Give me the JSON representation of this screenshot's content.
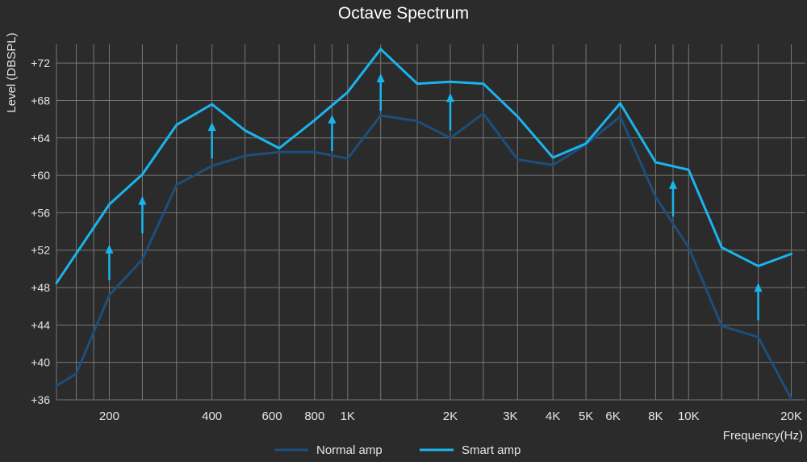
{
  "chart_data": {
    "type": "line",
    "title": "Octave Spectrum",
    "xlabel": "Frequency(Hz)",
    "ylabel": "Level (DBSPL)",
    "x_scale": "log",
    "xlim": [
      140,
      22000
    ],
    "ylim": [
      36,
      74
    ],
    "y_ticks": [
      {
        "value": 36,
        "label": "+36"
      },
      {
        "value": 40,
        "label": "+40"
      },
      {
        "value": 44,
        "label": "+44"
      },
      {
        "value": 48,
        "label": "+48"
      },
      {
        "value": 52,
        "label": "+52"
      },
      {
        "value": 56,
        "label": "+56"
      },
      {
        "value": 60,
        "label": "+60"
      },
      {
        "value": 64,
        "label": "+64"
      },
      {
        "value": 68,
        "label": "+68"
      },
      {
        "value": 72,
        "label": "+72"
      }
    ],
    "x_ticks": [
      {
        "value": 200,
        "label": "200"
      },
      {
        "value": 400,
        "label": "400"
      },
      {
        "value": 600,
        "label": "600"
      },
      {
        "value": 800,
        "label": "800"
      },
      {
        "value": 1000,
        "label": "1K"
      },
      {
        "value": 2000,
        "label": "2K"
      },
      {
        "value": 3000,
        "label": "3K"
      },
      {
        "value": 4000,
        "label": "4K"
      },
      {
        "value": 5000,
        "label": "5K"
      },
      {
        "value": 6000,
        "label": "6K"
      },
      {
        "value": 8000,
        "label": "8K"
      },
      {
        "value": 10000,
        "label": "10K"
      },
      {
        "value": 20000,
        "label": "20K"
      }
    ],
    "grid_lines_x": [
      140,
      160,
      180,
      200,
      250,
      315,
      400,
      500,
      630,
      800,
      900,
      1000,
      1250,
      1600,
      2000,
      2500,
      3150,
      4000,
      5000,
      6300,
      8000,
      9000,
      10000,
      12500,
      16000,
      20000
    ],
    "grid": true,
    "legend_position": "bottom",
    "colors": {
      "background": "#2b2b2b",
      "grid": "#777777",
      "text": "#e6e6e6",
      "normal_amp": "#1c4f7c",
      "smart_amp": "#1ab4ee",
      "arrow": "#1ab4ee"
    },
    "series": [
      {
        "name": "Normal amp",
        "x": [
          140,
          160,
          200,
          250,
          315,
          400,
          500,
          630,
          800,
          1000,
          1250,
          1600,
          2000,
          2500,
          3150,
          4000,
          5000,
          6300,
          8000,
          10000,
          12500,
          16000,
          20000
        ],
        "values": [
          37.5,
          38.8,
          47.2,
          51.0,
          59.0,
          61.0,
          62.1,
          62.5,
          62.5,
          61.8,
          66.4,
          65.8,
          64.0,
          66.6,
          61.7,
          61.1,
          63.3,
          66.3,
          57.7,
          52.3,
          43.9,
          42.7,
          36.1
        ]
      },
      {
        "name": "Smart amp",
        "x": [
          140,
          200,
          250,
          315,
          400,
          500,
          630,
          800,
          1000,
          1250,
          1600,
          2000,
          2500,
          3150,
          4000,
          5000,
          6300,
          8000,
          10000,
          12500,
          16000,
          20000
        ],
        "values": [
          48.5,
          56.9,
          60.1,
          65.4,
          67.6,
          64.8,
          62.9,
          65.9,
          68.9,
          73.5,
          69.8,
          70.0,
          69.8,
          66.3,
          61.9,
          63.4,
          67.7,
          61.4,
          60.6,
          52.3,
          50.3,
          51.6
        ]
      }
    ],
    "annotations": [
      {
        "type": "arrow-up",
        "x": 200,
        "from": 48.8,
        "to": 52.6
      },
      {
        "type": "arrow-up",
        "x": 250,
        "from": 53.8,
        "to": 57.8
      },
      {
        "type": "arrow-up",
        "x": 400,
        "from": 61.8,
        "to": 65.7
      },
      {
        "type": "arrow-up",
        "x": 900,
        "from": 62.6,
        "to": 66.5
      },
      {
        "type": "arrow-up",
        "x": 1250,
        "from": 66.9,
        "to": 70.9
      },
      {
        "type": "arrow-up",
        "x": 2000,
        "from": 64.8,
        "to": 68.8
      },
      {
        "type": "arrow-up",
        "x": 9000,
        "from": 55.6,
        "to": 59.5
      },
      {
        "type": "arrow-up",
        "x": 16000,
        "from": 44.5,
        "to": 48.5
      }
    ]
  }
}
